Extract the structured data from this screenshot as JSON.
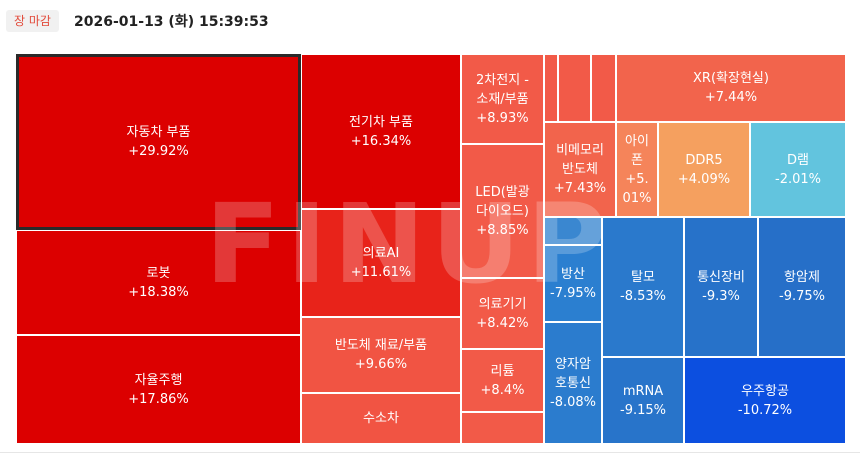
{
  "header": {
    "status_badge": "장 마감",
    "datetime": "2026-01-13 (화) 15:39:53"
  },
  "watermark": "FINUP",
  "treemap": {
    "tiles": [
      {
        "id": "auto-parts",
        "name": "자동차 부품",
        "change": "+29.92%",
        "color": "#dc0000",
        "selected": true
      },
      {
        "id": "robot",
        "name": "로봇",
        "change": "+18.38%",
        "color": "#dc0000"
      },
      {
        "id": "autonomous",
        "name": "자율주행",
        "change": "+17.86%",
        "color": "#dc0000"
      },
      {
        "id": "ev-parts",
        "name": "전기차 부품",
        "change": "+16.34%",
        "color": "#dc0000"
      },
      {
        "id": "medical-ai",
        "name": "의료AI",
        "change": "+11.61%",
        "color": "#e8231a"
      },
      {
        "id": "semi-materials",
        "name": "반도체 재료/부품",
        "change": "+9.66%",
        "color": "#f15443"
      },
      {
        "id": "hydrogen-car",
        "name": "수소차",
        "change": "",
        "color": "#f15443"
      },
      {
        "id": "battery-materials",
        "name": "2차전지 - 소재/부품",
        "change": "+8.93%",
        "color": "#f25a48"
      },
      {
        "id": "led",
        "name": "LED(발광다이오드)",
        "change": "+8.85%",
        "color": "#f25a48"
      },
      {
        "id": "medical-device",
        "name": "의료기기",
        "change": "+8.42%",
        "color": "#f25a48"
      },
      {
        "id": "lithium",
        "name": "리튬",
        "change": "+8.4%",
        "color": "#f25a48"
      },
      {
        "id": "small-1",
        "name": "",
        "change": "",
        "color": "#f25a48"
      },
      {
        "id": "small-2",
        "name": "",
        "change": "",
        "color": "#f25a48"
      },
      {
        "id": "small-3",
        "name": "",
        "change": "",
        "color": "#f25a48"
      },
      {
        "id": "small-4",
        "name": "",
        "change": "",
        "color": "#f25a48"
      },
      {
        "id": "xr",
        "name": "XR(확장현실)",
        "change": "+7.44%",
        "color": "#f2644c"
      },
      {
        "id": "non-memory",
        "name": "비메모리 반도체",
        "change": "+7.43%",
        "color": "#f2644c"
      },
      {
        "id": "ipo",
        "name": "아이폰",
        "change": "+5.01%",
        "color": "#f5845a"
      },
      {
        "id": "ddr5",
        "name": "DDR5",
        "change": "+4.09%",
        "color": "#f5a05f"
      },
      {
        "id": "dram",
        "name": "D램",
        "change": "-2.01%",
        "color": "#62c4de"
      },
      {
        "id": "small-blue",
        "name": "",
        "change": "",
        "color": "#3a87d0"
      },
      {
        "id": "defense",
        "name": "방산",
        "change": "-7.95%",
        "color": "#2b7fd0"
      },
      {
        "id": "hair-loss",
        "name": "탈모",
        "change": "-8.53%",
        "color": "#2a79cc"
      },
      {
        "id": "telecom",
        "name": "통신장비",
        "change": "-9.3%",
        "color": "#2772c9"
      },
      {
        "id": "antiviral",
        "name": "항암제",
        "change": "-9.75%",
        "color": "#266fc8"
      },
      {
        "id": "quantum",
        "name": "양자암호통신",
        "change": "-8.08%",
        "color": "#2b7cce"
      },
      {
        "id": "mrna",
        "name": "mRNA",
        "change": "-9.15%",
        "color": "#2874ca"
      },
      {
        "id": "aerospace",
        "name": "우주항공",
        "change": "-10.72%",
        "color": "#0c4fe0"
      }
    ]
  }
}
